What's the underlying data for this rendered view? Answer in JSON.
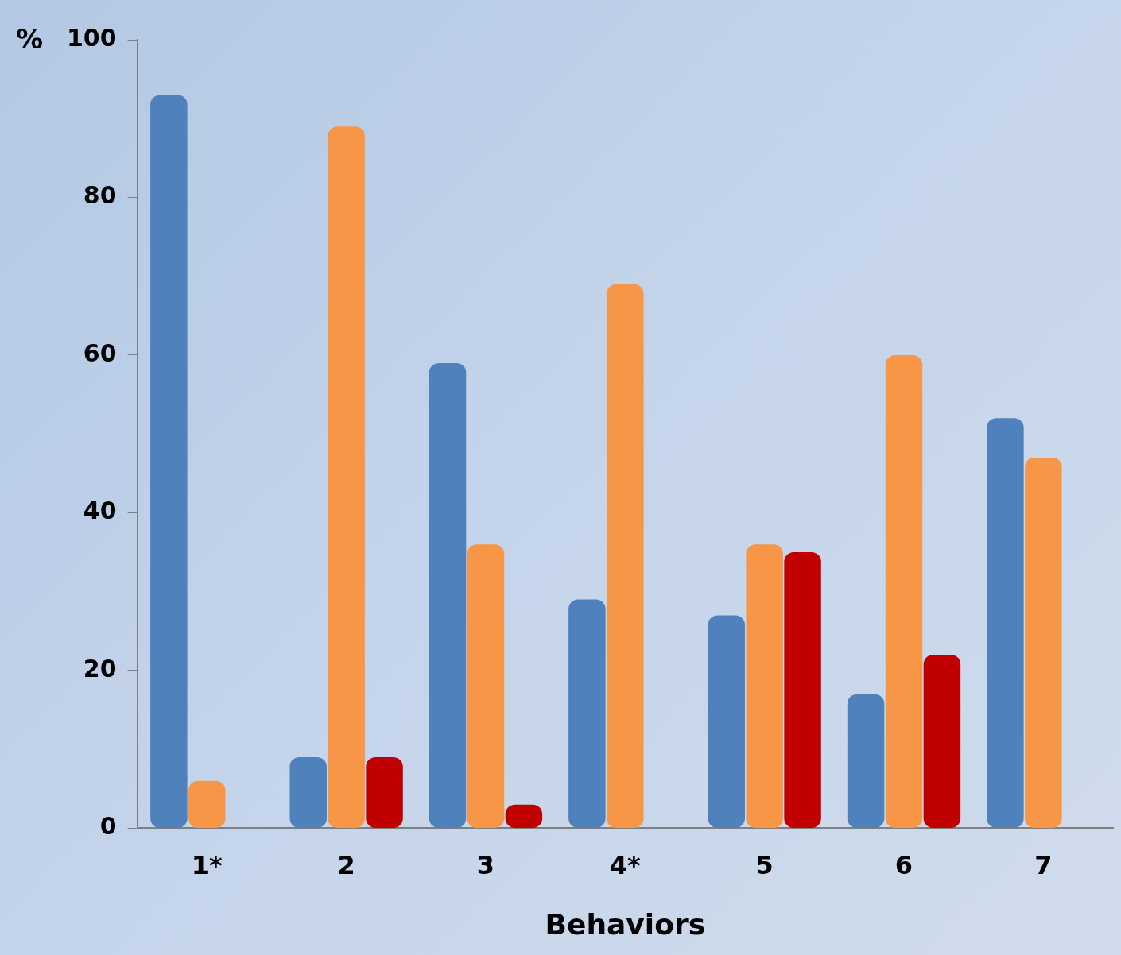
{
  "chart_data": {
    "type": "bar",
    "xlabel": "Behaviors",
    "ylabel": "%",
    "categories": [
      "1*",
      "2",
      "3",
      "4*",
      "5",
      "6",
      "7"
    ],
    "series": [
      {
        "color": "#4f81bd",
        "values": [
          93,
          9,
          59,
          29,
          27,
          17,
          52
        ]
      },
      {
        "color": "#f79646",
        "values": [
          6,
          89,
          36,
          69,
          36,
          60,
          47
        ]
      },
      {
        "color": "#c00000",
        "values": [
          null,
          9,
          3,
          null,
          35,
          22,
          0
        ]
      }
    ],
    "ylim": [
      0,
      100
    ],
    "yticks": [
      0,
      20,
      40,
      60,
      80,
      100
    ],
    "grid": false,
    "legend": false
  }
}
